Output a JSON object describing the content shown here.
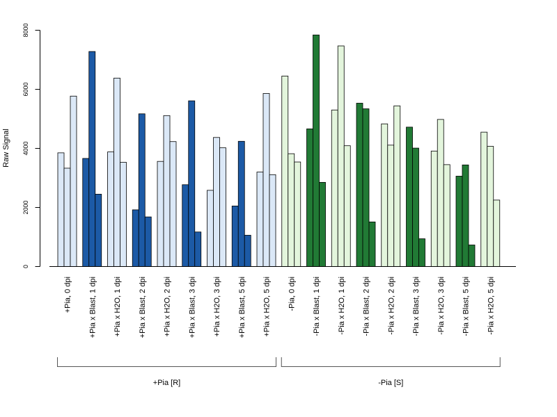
{
  "chart_data": {
    "type": "bar",
    "title": "",
    "xlabel": "",
    "ylabel": "Raw Signal",
    "ylim": [
      0,
      8000
    ],
    "yticks": [
      0,
      2000,
      4000,
      6000,
      8000
    ],
    "grid": false,
    "colors": {
      "light_blue": "#dbe8f7",
      "dark_blue": "#1c5aa6",
      "light_green": "#e3f5dc",
      "dark_green": "#217a35",
      "bar_border": "#000000",
      "axis": "#000000",
      "bracket": "#555555"
    },
    "categories": [
      {
        "label": "+Pia, 0 dpi",
        "color": "light_blue",
        "values": [
          3850,
          3330,
          5770
        ]
      },
      {
        "label": "+Pia x Blast, 1 dpi",
        "color": "dark_blue",
        "values": [
          3660,
          7280,
          2450
        ]
      },
      {
        "label": "+Pia x H2O, 1 dpi",
        "color": "light_blue",
        "values": [
          3880,
          6380,
          3530
        ]
      },
      {
        "label": "+Pia x Blast, 2 dpi",
        "color": "dark_blue",
        "values": [
          1920,
          5170,
          1680
        ]
      },
      {
        "label": "+Pia x H2O, 2 dpi",
        "color": "light_blue",
        "values": [
          3560,
          5110,
          4230
        ]
      },
      {
        "label": "+Pia x Blast, 3 dpi",
        "color": "dark_blue",
        "values": [
          2770,
          5610,
          1170
        ]
      },
      {
        "label": "+Pia x H2O, 3 dpi",
        "color": "light_blue",
        "values": [
          2580,
          4370,
          4020
        ]
      },
      {
        "label": "+Pia x Blast, 5 dpi",
        "color": "dark_blue",
        "values": [
          2050,
          4240,
          1060
        ]
      },
      {
        "label": "+Pia x H2O, 5 dpi",
        "color": "light_blue",
        "values": [
          3200,
          5860,
          3110
        ]
      },
      {
        "label": "-Pia, 0 dpi",
        "color": "light_green",
        "values": [
          6450,
          3820,
          3540
        ]
      },
      {
        "label": "-Pia x Blast, 1 dpi",
        "color": "dark_green",
        "values": [
          4660,
          7840,
          2850
        ]
      },
      {
        "label": "-Pia x H2O, 1 dpi",
        "color": "light_green",
        "values": [
          5300,
          7470,
          4090
        ]
      },
      {
        "label": "-Pia x Blast, 2 dpi",
        "color": "dark_green",
        "values": [
          5530,
          5340,
          1510
        ]
      },
      {
        "label": "-Pia x H2O, 2 dpi",
        "color": "light_green",
        "values": [
          4830,
          4110,
          5440
        ]
      },
      {
        "label": "-Pia x Blast, 3 dpi",
        "color": "dark_green",
        "values": [
          4720,
          4010,
          940
        ]
      },
      {
        "label": "-Pia x H2O, 3 dpi",
        "color": "light_green",
        "values": [
          3910,
          4980,
          3450
        ]
      },
      {
        "label": "-Pia x Blast, 5 dpi",
        "color": "dark_green",
        "values": [
          3060,
          3440,
          730
        ]
      },
      {
        "label": "-Pia x H2O, 5 dpi",
        "color": "light_green",
        "values": [
          4550,
          4070,
          2250
        ]
      }
    ],
    "groups": [
      {
        "label": "+Pia [R]",
        "from": 0,
        "to": 8
      },
      {
        "label": "-Pia [S]",
        "from": 9,
        "to": 17
      }
    ]
  }
}
